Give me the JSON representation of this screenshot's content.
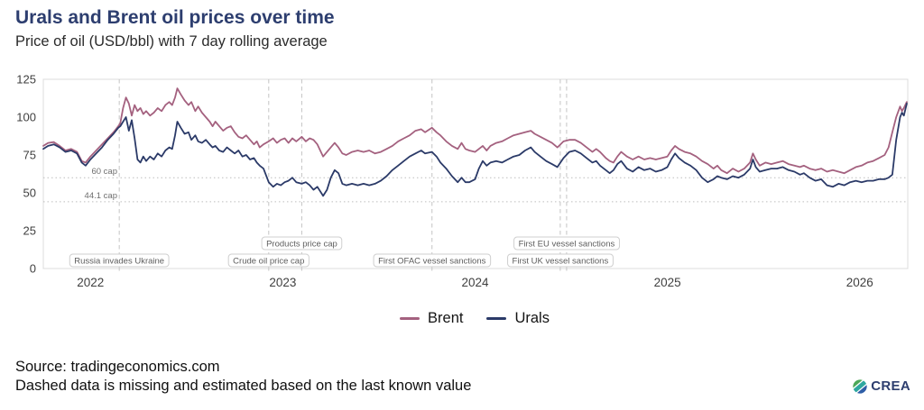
{
  "header": {
    "title": "Urals and Brent oil prices over time",
    "subtitle": "Price of oil (USD/bbl) with 7 day rolling average"
  },
  "chart_data": {
    "type": "line",
    "unit": "USD/bbl",
    "x_axis": {
      "label": "",
      "domain": [
        2021.755,
        2026.25
      ],
      "ticks": [
        2022,
        2023,
        2024,
        2025,
        2026
      ]
    },
    "y_axis": {
      "label": "",
      "domain": [
        0,
        125
      ],
      "ticks": [
        0,
        25,
        50,
        75,
        100,
        125
      ]
    },
    "grid": false,
    "legend_position": "bottom-center",
    "hlines": [
      {
        "label": "60 cap",
        "value": 60
      },
      {
        "label": "44.1 cap",
        "value": 44.1
      }
    ],
    "events": [
      {
        "label": "Russia invades Ukraine",
        "x": 2022.15,
        "row": 0
      },
      {
        "label": "Crude oil price cap",
        "x": 2022.927,
        "row": 0
      },
      {
        "label": "Products price cap",
        "x": 2023.099,
        "row": 1
      },
      {
        "label": "First OFAC vessel sanctions",
        "x": 2023.776,
        "row": 0
      },
      {
        "label": "First UK vessel sanctions",
        "x": 2024.443,
        "row": 0
      },
      {
        "label": "First EU vessel sanctions",
        "x": 2024.476,
        "row": 1
      }
    ],
    "x": [
      2021.755,
      2021.78,
      2021.81,
      2021.84,
      2021.87,
      2021.9,
      2021.93,
      2021.955,
      2021.975,
      2022.0,
      2022.03,
      2022.06,
      2022.09,
      2022.12,
      2022.145,
      2022.155,
      2022.17,
      2022.185,
      2022.2,
      2022.215,
      2022.23,
      2022.245,
      2022.26,
      2022.275,
      2022.29,
      2022.31,
      2022.33,
      2022.35,
      2022.37,
      2022.39,
      2022.41,
      2022.425,
      2022.44,
      2022.452,
      2022.47,
      2022.49,
      2022.51,
      2022.525,
      2022.545,
      2022.56,
      2022.58,
      2022.6,
      2022.62,
      2022.635,
      2022.65,
      2022.67,
      2022.69,
      2022.71,
      2022.73,
      2022.75,
      2022.77,
      2022.79,
      2022.81,
      2022.83,
      2022.85,
      2022.865,
      2022.88,
      2022.9,
      2022.927,
      2022.95,
      2022.97,
      2022.99,
      2023.01,
      2023.03,
      2023.05,
      2023.07,
      2023.099,
      2023.12,
      2023.14,
      2023.16,
      2023.18,
      2023.21,
      2023.23,
      2023.25,
      2023.27,
      2023.29,
      2023.31,
      2023.33,
      2023.36,
      2023.39,
      2023.42,
      2023.45,
      2023.48,
      2023.51,
      2023.54,
      2023.57,
      2023.6,
      2023.63,
      2023.66,
      2023.69,
      2023.72,
      2023.74,
      2023.776,
      2023.8,
      2023.82,
      2023.85,
      2023.88,
      2023.91,
      2023.93,
      2023.95,
      2023.97,
      2024.0,
      2024.02,
      2024.04,
      2024.06,
      2024.08,
      2024.11,
      2024.14,
      2024.17,
      2024.2,
      2024.23,
      2024.26,
      2024.29,
      2024.31,
      2024.34,
      2024.37,
      2024.4,
      2024.428,
      2024.46,
      2024.49,
      2024.52,
      2024.55,
      2024.58,
      2024.61,
      2024.63,
      2024.65,
      2024.68,
      2024.7,
      2024.72,
      2024.74,
      2024.76,
      2024.79,
      2024.82,
      2024.85,
      2024.88,
      2024.91,
      2024.94,
      2024.97,
      2025.0,
      2025.02,
      2025.04,
      2025.06,
      2025.09,
      2025.12,
      2025.15,
      2025.18,
      2025.21,
      2025.24,
      2025.26,
      2025.28,
      2025.31,
      2025.34,
      2025.37,
      2025.4,
      2025.43,
      2025.445,
      2025.46,
      2025.48,
      2025.51,
      2025.54,
      2025.57,
      2025.6,
      2025.63,
      2025.66,
      2025.69,
      2025.71,
      2025.74,
      2025.77,
      2025.8,
      2025.83,
      2025.86,
      2025.89,
      2025.92,
      2025.95,
      2025.98,
      2026.01,
      2026.04,
      2026.07,
      2026.1,
      2026.13,
      2026.15,
      2026.17,
      2026.19,
      2026.21,
      2026.22,
      2026.23,
      2026.245
    ],
    "series": [
      {
        "name": "Brent",
        "color": "#a4617f",
        "values": [
          81,
          83,
          83.5,
          81,
          78,
          79,
          77,
          71,
          70,
          74,
          78,
          82,
          86,
          90,
          94,
          96,
          106,
          113,
          109,
          101,
          108,
          104,
          106,
          102,
          104,
          101,
          103,
          106,
          104,
          108,
          110,
          108,
          113,
          119,
          115,
          111,
          108,
          110,
          104,
          107,
          103,
          100,
          97,
          94,
          97,
          94,
          91,
          93,
          94,
          90,
          87,
          86,
          88,
          85,
          82,
          84,
          80,
          82,
          84,
          86,
          83,
          85,
          86,
          83,
          86,
          84,
          87,
          84,
          86,
          85,
          82,
          74,
          77,
          80,
          83,
          80,
          76,
          75,
          77,
          78,
          77,
          78,
          76,
          77,
          79,
          81,
          84,
          86,
          88,
          91,
          92,
          90,
          93,
          90,
          88,
          84,
          81,
          79,
          83,
          79,
          78,
          77,
          79,
          81,
          78,
          81,
          83,
          84,
          86,
          88,
          89,
          90,
          91,
          89,
          87,
          85,
          83,
          80,
          84,
          85,
          85,
          83,
          80,
          77,
          79,
          77,
          73,
          71,
          70,
          74,
          77,
          74,
          72,
          74,
          72,
          73,
          72,
          73,
          74,
          78,
          81,
          79,
          77,
          76,
          74,
          71,
          69,
          66,
          68,
          65,
          63,
          66,
          64,
          66,
          70,
          76,
          72,
          68,
          70,
          69,
          70,
          71,
          69,
          68,
          67,
          68,
          66,
          65,
          66,
          64,
          65,
          64,
          63,
          65,
          67,
          68,
          70,
          71,
          73,
          75,
          80,
          90,
          100,
          107,
          104,
          106,
          110
        ]
      },
      {
        "name": "Urals",
        "color": "#2b3a68",
        "values": [
          79,
          81,
          82,
          80,
          77,
          78,
          76,
          70,
          68,
          72,
          76,
          80,
          85,
          89,
          93,
          94,
          97,
          100,
          91,
          98,
          86,
          72,
          70,
          74,
          71,
          74,
          72,
          76,
          74,
          78,
          80,
          79,
          88,
          97,
          93,
          89,
          90,
          85,
          88,
          84,
          83,
          85,
          82,
          80,
          81,
          78,
          77,
          80,
          78,
          76,
          78,
          74,
          75,
          72,
          73,
          70,
          68,
          66,
          57,
          54,
          56,
          55,
          57,
          58,
          60,
          57,
          56,
          57,
          55,
          52,
          54,
          48,
          52,
          60,
          65,
          63,
          56,
          55,
          56,
          55,
          56,
          55,
          56,
          58,
          61,
          65,
          68,
          71,
          74,
          76,
          78,
          76,
          77,
          74,
          70,
          66,
          61,
          57,
          60,
          57,
          57,
          59,
          66,
          71,
          68,
          70,
          71,
          70,
          72,
          74,
          75,
          78,
          80,
          77,
          74,
          71,
          69,
          67,
          73,
          77,
          78,
          76,
          73,
          70,
          71,
          68,
          65,
          63,
          65,
          69,
          71,
          66,
          64,
          67,
          65,
          66,
          64,
          65,
          67,
          72,
          76,
          73,
          70,
          68,
          65,
          60,
          57,
          59,
          61,
          60,
          59,
          61,
          60,
          62,
          66,
          72,
          67,
          64,
          65,
          66,
          66,
          67,
          65,
          64,
          62,
          63,
          60,
          58,
          59,
          55,
          54,
          56,
          55,
          57,
          58,
          57,
          58,
          58,
          59,
          59,
          60,
          62,
          85,
          100,
          103,
          101,
          109
        ]
      }
    ]
  },
  "footer": {
    "source": "Source: tradingeconomics.com",
    "note": "Dashed data is missing and estimated based on the last known value",
    "logo_text": "CREA"
  },
  "colors": {
    "navy": "#2d3e6f",
    "frame": "#dcdcdc",
    "event_line": "#c9c9c9",
    "cap_line": "#bdbdbd",
    "annotation_text": "#5d5d5d",
    "tick_text": "#3f3f3f",
    "logo_green": "#4ca757",
    "logo_teal": "#2fa8a0",
    "logo_blue": "#2e5ea6"
  }
}
